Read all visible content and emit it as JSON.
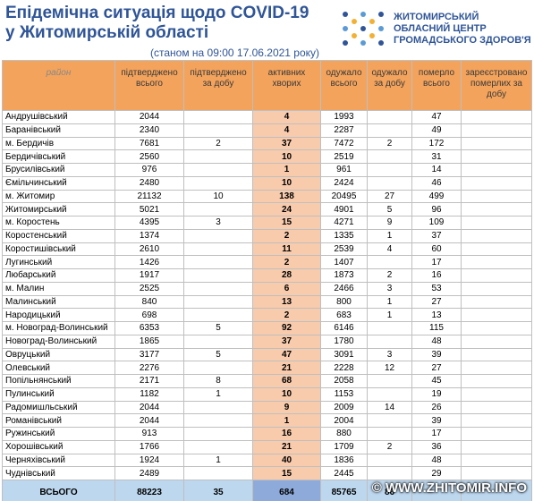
{
  "header": {
    "title_line1": "Епідемічна ситуація щодо COVID-19",
    "title_line2": "у Житомирській області",
    "date": "(станом на 09:00 17.06.2021 року)",
    "logo_line1": "ЖИТОМИРСЬКИЙ",
    "logo_line2": "ОБЛАСНИЙ ЦЕНТР",
    "logo_line3": "ГРОМАДСЬКОГО ЗДОРОВ'Я"
  },
  "table": {
    "columns": [
      "район",
      "підтверджено всього",
      "підтверджено за добу",
      "активних хворих",
      "одужало всього",
      "одужало за добу",
      "померло всього",
      "зареєстровано померлих за добу"
    ],
    "rows": [
      [
        "Андрушівський",
        2044,
        null,
        4,
        1993,
        null,
        47,
        null
      ],
      [
        "Баранівський",
        2340,
        null,
        4,
        2287,
        null,
        49,
        null
      ],
      [
        "м. Бердичів",
        7681,
        2,
        37,
        7472,
        2,
        172,
        null
      ],
      [
        "Бердичівський",
        2560,
        null,
        10,
        2519,
        null,
        31,
        null
      ],
      [
        "Брусилівський",
        976,
        null,
        1,
        961,
        null,
        14,
        null
      ],
      [
        "Ємільчинський",
        2480,
        null,
        10,
        2424,
        null,
        46,
        null
      ],
      [
        "м. Житомир",
        21132,
        10,
        138,
        20495,
        27,
        499,
        null
      ],
      [
        "Житомирський",
        5021,
        null,
        24,
        4901,
        5,
        96,
        null
      ],
      [
        "м. Коростень",
        4395,
        3,
        15,
        4271,
        9,
        109,
        null
      ],
      [
        "Коростенський",
        1374,
        null,
        2,
        1335,
        1,
        37,
        null
      ],
      [
        "Коростишівський",
        2610,
        null,
        11,
        2539,
        4,
        60,
        null
      ],
      [
        "Лугинський",
        1426,
        null,
        2,
        1407,
        null,
        17,
        null
      ],
      [
        "Любарський",
        1917,
        null,
        28,
        1873,
        2,
        16,
        null
      ],
      [
        "м. Малин",
        2525,
        null,
        6,
        2466,
        3,
        53,
        null
      ],
      [
        "Малинський",
        840,
        null,
        13,
        800,
        1,
        27,
        null
      ],
      [
        "Народицький",
        698,
        null,
        2,
        683,
        1,
        13,
        null
      ],
      [
        "м. Новоград-Волинський",
        6353,
        5,
        92,
        6146,
        null,
        115,
        null
      ],
      [
        "Новоград-Волинський",
        1865,
        null,
        37,
        1780,
        null,
        48,
        null
      ],
      [
        "Овруцький",
        3177,
        5,
        47,
        3091,
        3,
        39,
        null
      ],
      [
        "Олевський",
        2276,
        null,
        21,
        2228,
        12,
        27,
        null
      ],
      [
        "Попільнянський",
        2171,
        8,
        68,
        2058,
        null,
        45,
        null
      ],
      [
        "Пулинський",
        1182,
        1,
        10,
        1153,
        null,
        19,
        null
      ],
      [
        "Радомишльський",
        2044,
        null,
        9,
        2009,
        14,
        26,
        null
      ],
      [
        "Романівський",
        2044,
        null,
        1,
        2004,
        null,
        39,
        null
      ],
      [
        "Ружинський",
        913,
        null,
        16,
        880,
        null,
        17,
        null
      ],
      [
        "Хорошівський",
        1766,
        null,
        21,
        1709,
        2,
        36,
        null
      ],
      [
        "Черняхівський",
        1924,
        1,
        40,
        1836,
        null,
        48,
        null
      ],
      [
        "Чуднівський",
        2489,
        null,
        15,
        2445,
        null,
        29,
        null
      ]
    ],
    "total": [
      "ВСЬОГО",
      88223,
      35,
      684,
      85765,
      86,
      null,
      null
    ]
  },
  "watermark": "© WWW.ZHITOMIR.INFO"
}
